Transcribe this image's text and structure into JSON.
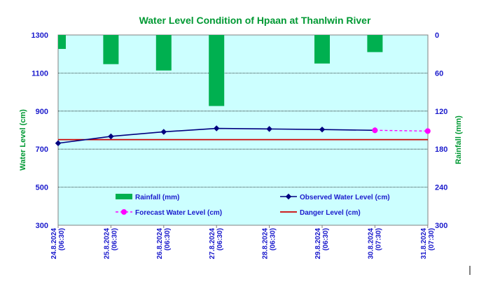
{
  "chart_data": {
    "type": "bar+line",
    "title": "Water Level Condition of Hpaan at Thanlwin River",
    "ylabel_left": "Water Level (cm)",
    "ylabel_right": "Rainfall (mm)",
    "ylim_left": [
      300,
      1300
    ],
    "yticks_left": [
      "300",
      "500",
      "700",
      "900",
      "1100",
      "1300"
    ],
    "ylim_right": [
      0,
      300
    ],
    "right_axis_inverted": true,
    "yticks_right": [
      "0",
      "60",
      "120",
      "180",
      "240",
      "300"
    ],
    "categories": [
      [
        "24.8.2024",
        "(06:30)"
      ],
      [
        "25.8.2024",
        "(06:30)"
      ],
      [
        "26.8.2024",
        "(06:30)"
      ],
      [
        "27.8.2024",
        "(06:30)"
      ],
      [
        "28.8.2024",
        "(06:30)"
      ],
      [
        "29.8.2024",
        "(06:30)"
      ],
      [
        "30.8.2024",
        "(07:30)"
      ],
      [
        "31.8.2024",
        "(07:30)"
      ]
    ],
    "grid": "horizontal",
    "series": [
      {
        "name": "Rainfall (mm)",
        "kind": "bar",
        "axis": "right",
        "color": "#00b050",
        "values": [
          22,
          46,
          56,
          112,
          null,
          45,
          27,
          null
        ]
      },
      {
        "name": "Observed Water Level (cm)",
        "kind": "line",
        "axis": "left",
        "color": "#000080",
        "values": [
          731,
          767,
          791,
          809,
          806,
          803,
          799,
          null
        ]
      },
      {
        "name": "Forecast Water Level (cm)",
        "kind": "line-dashed",
        "axis": "left",
        "color": "#ff00ff",
        "values": [
          null,
          null,
          null,
          null,
          null,
          null,
          799,
          795
        ]
      },
      {
        "name": "Danger Level (cm)",
        "kind": "line",
        "axis": "left",
        "color": "#cc0000",
        "values": [
          750,
          750,
          750,
          750,
          750,
          750,
          750,
          750
        ]
      }
    ],
    "legend_position": "inside-bottom"
  }
}
